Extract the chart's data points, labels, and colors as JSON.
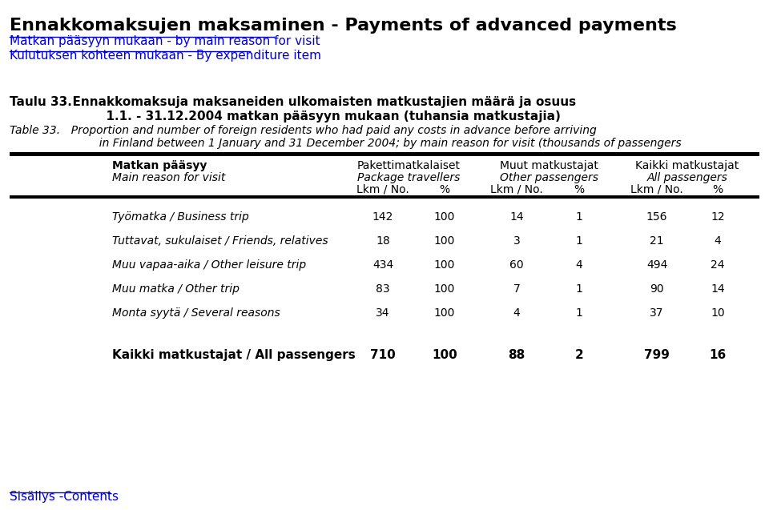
{
  "title_line1": "Ennakkomaksujen maksaminen - Payments of advanced payments",
  "link1": "Matkan pääsyyn mukaan - by main reason for visit",
  "link2": "Kulutuksen kohteen mukaan - By expenditure item",
  "taulu_label": "Taulu 33.",
  "taulu_fi": "  Ennakkomaksuja maksaneiden ulkomaisten matkustajien määrä ja osuus",
  "taulu_fi2": "          1.1. - 31.12.2004 matkan pääsyyn mukaan (tuhansia matkustajia)",
  "table_label": "Table 33.",
  "table_en1": "  Proportion and number of foreign residents who had paid any costs in advance before arriving",
  "table_en2": "          in Finland between 1 January and 31 December 2004; by main reason for visit (thousands of passengers",
  "col_headers": {
    "col1_fi": "Matkan pääsyy",
    "col1_en": "Main reason for visit",
    "col2_fi": "Pakettimatkalaiset",
    "col2_en": "Package travellers",
    "col3_fi": "Muut matkustajat",
    "col3_en": "Other passengers",
    "col4_fi": "Kaikki matkustajat",
    "col4_en": "All passengers",
    "sub_lkm": "Lkm / No.",
    "sub_pct": "%"
  },
  "rows": [
    {
      "label": "Työmatka / Business trip",
      "pkg_lkm": "142",
      "pkg_pct": "100",
      "other_lkm": "14",
      "other_pct": "1",
      "all_lkm": "156",
      "all_pct": "12"
    },
    {
      "label": "Tuttavat, sukulaiset / Friends, relatives",
      "pkg_lkm": "18",
      "pkg_pct": "100",
      "other_lkm": "3",
      "other_pct": "1",
      "all_lkm": "21",
      "all_pct": "4"
    },
    {
      "label": "Muu vapaa-aika / Other leisure trip",
      "pkg_lkm": "434",
      "pkg_pct": "100",
      "other_lkm": "60",
      "other_pct": "4",
      "all_lkm": "494",
      "all_pct": "24"
    },
    {
      "label": "Muu matka / Other trip",
      "pkg_lkm": "83",
      "pkg_pct": "100",
      "other_lkm": "7",
      "other_pct": "1",
      "all_lkm": "90",
      "all_pct": "14"
    },
    {
      "label": "Monta syytä / Several reasons",
      "pkg_lkm": "34",
      "pkg_pct": "100",
      "other_lkm": "4",
      "other_pct": "1",
      "all_lkm": "37",
      "all_pct": "10"
    }
  ],
  "total": {
    "label": "Kaikki matkustajat / All passengers",
    "pkg_lkm": "710",
    "pkg_pct": "100",
    "other_lkm": "88",
    "other_pct": "2",
    "all_lkm": "799",
    "all_pct": "16"
  },
  "footer_link": "Sisällys -Contents",
  "bg_color": "#ffffff",
  "link_color": "#0000cc",
  "bar_color": "#000000"
}
